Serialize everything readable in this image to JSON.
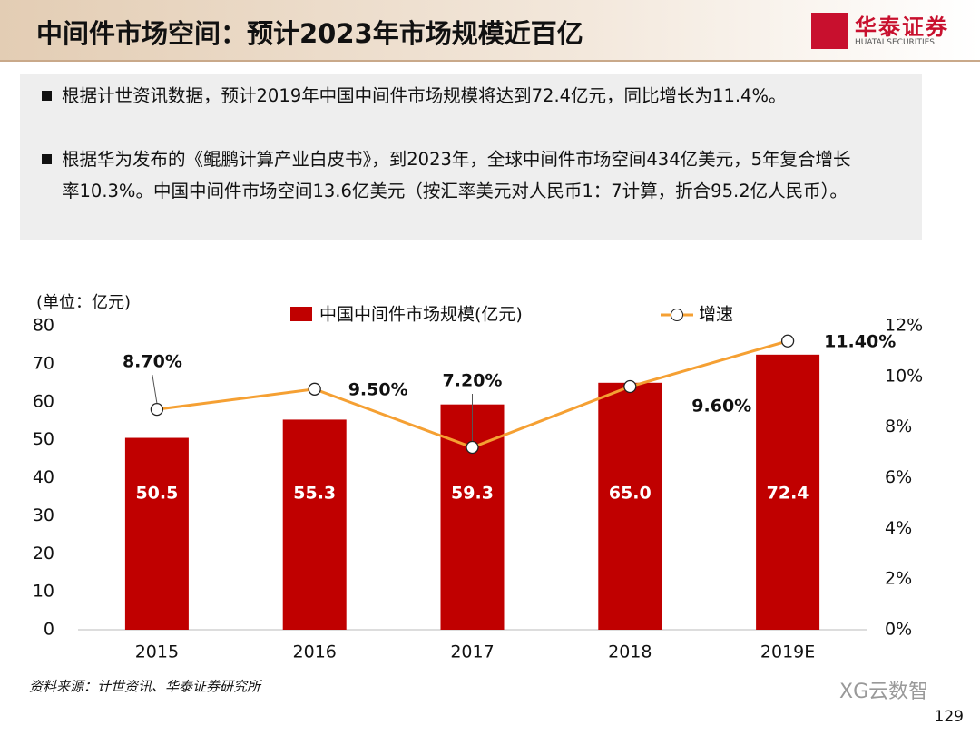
{
  "header": {
    "title": "中间件市场空间：预计2023年市场规模近百亿",
    "logo": "华泰证券",
    "logo_sub": "HUATAI SECURITIES"
  },
  "bullets": [
    "根据计世资讯数据，预计2019年中国中间件市场规模将达到72.4亿元，同比增长为11.4%。",
    "根据华为发布的《鲲鹏计算产业白皮书》，到2023年，全球中间件市场空间434亿美元，5年复合增长率10.3%。中国中间件市场空间13.6亿美元（按汇率美元对人民币1：7计算，折合95.2亿人民币）。"
  ],
  "chart_data": {
    "type": "bar",
    "y_label": "(单位：亿元)",
    "categories": [
      "2015",
      "2016",
      "2017",
      "2018",
      "2019E"
    ],
    "series": [
      {
        "name": "中国中间件市场规模(亿元)",
        "type": "bar",
        "color": "#c00000",
        "values": [
          50.5,
          55.3,
          59.3,
          65.0,
          72.4
        ],
        "value_labels": [
          "50.5",
          "55.3",
          "59.3",
          "65.0",
          "72.4"
        ]
      },
      {
        "name": "增速",
        "type": "line",
        "axis": "y2",
        "color": "#f5a033",
        "values": [
          8.7,
          9.5,
          7.2,
          9.6,
          11.4
        ],
        "value_labels": [
          "8.70%",
          "9.50%",
          "7.20%",
          "9.60%",
          "11.40%"
        ]
      }
    ],
    "ylim": [
      0,
      80
    ],
    "yticks": [
      0,
      10,
      20,
      30,
      40,
      50,
      60,
      70,
      80
    ],
    "y2lim": [
      0,
      12
    ],
    "y2ticks": [
      {
        "value": 0,
        "label": "0%"
      },
      {
        "value": 2,
        "label": "2%"
      },
      {
        "value": 4,
        "label": "4%"
      },
      {
        "value": 6,
        "label": "6%"
      },
      {
        "value": 8,
        "label": "8%"
      },
      {
        "value": 10,
        "label": "10%"
      },
      {
        "value": 12,
        "label": "12%"
      }
    ],
    "grid": false
  },
  "source": "资料来源：计世资讯、华泰证券研究所",
  "watermark": "XG云数智",
  "page_number": "129"
}
